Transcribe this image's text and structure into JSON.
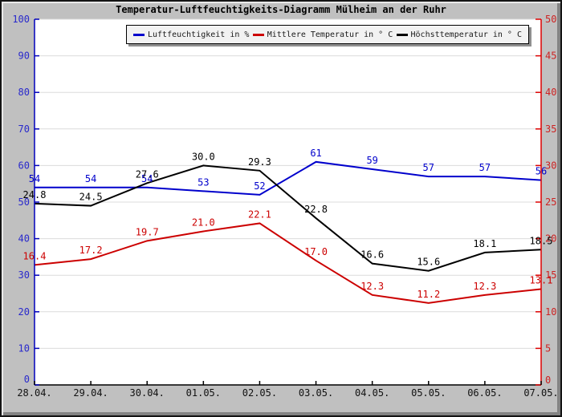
{
  "window": {
    "background_color": "#c0c0c0"
  },
  "chart_data": {
    "type": "line",
    "title": "Temperatur-Luftfeuchtigkeits-Diagramm Mülheim an der Ruhr",
    "x_labels": [
      "28.04.",
      "29.04.",
      "30.04.",
      "01.05.",
      "02.05.",
      "03.05.",
      "04.05.",
      "05.05.",
      "06.05.",
      "07.05."
    ],
    "left_axis": {
      "range": [
        0,
        100
      ],
      "tick_labels": [
        "100",
        "90",
        "80",
        "70",
        "60",
        "50",
        "40",
        "30",
        "20",
        "10",
        "0"
      ],
      "line_color": "#0000bb",
      "label_color": "#2929cc"
    },
    "right_axis": {
      "range": [
        0,
        50
      ],
      "tick_labels": [
        "50",
        "45",
        "40",
        "35",
        "30",
        "25",
        "20",
        "15",
        "10",
        "5",
        "0"
      ],
      "line_color": "#dd0000",
      "label_color": "#cc2222"
    },
    "grid": {
      "show": true,
      "color": "#dcdcdc"
    },
    "legend_position": "top-center",
    "series": [
      {
        "name": "Luftfeuchtigkeit in %",
        "axis": "left",
        "color": "#0000cc",
        "values": [
          54,
          54,
          54,
          53,
          52,
          61,
          59,
          57,
          57,
          56
        ],
        "labels": [
          "54",
          "54",
          "54",
          "53",
          "52",
          "61",
          "59",
          "57",
          "57",
          "56"
        ]
      },
      {
        "name": "Mittlere Temperatur in ° C",
        "axis": "right",
        "color": "#cc0000",
        "values": [
          16.4,
          17.2,
          19.7,
          21.0,
          22.1,
          17.0,
          12.3,
          11.2,
          12.3,
          13.1
        ],
        "labels": [
          "16.4",
          "17.2",
          "19.7",
          "21.0",
          "22.1",
          "17.0",
          "12.3",
          "11.2",
          "12.3",
          "13.1"
        ]
      },
      {
        "name": "Höchsttemperatur in ° C",
        "axis": "right",
        "color": "#000000",
        "values": [
          24.8,
          24.5,
          27.6,
          30.0,
          29.3,
          22.8,
          16.6,
          15.6,
          18.1,
          18.5
        ],
        "labels": [
          "24.8",
          "24.5",
          "27.6",
          "30.0",
          "29.3",
          "22.8",
          "16.6",
          "15.6",
          "18.1",
          "18.5"
        ]
      }
    ]
  }
}
